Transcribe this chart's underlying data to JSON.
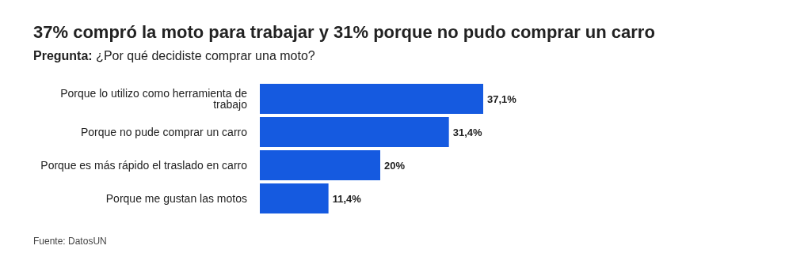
{
  "chart_data": {
    "type": "bar",
    "orientation": "horizontal",
    "tick_labels": false,
    "title": "37% compró la moto para trabajar y 31% porque no pudo comprar un carro",
    "subtitle": "Pregunta: ¿Por qué decidiste comprar una moto?",
    "categories": [
      "Porque lo utilizo como herramienta de trabajo",
      "Porque no pude comprar un carro",
      "Porque es más rápido el traslado en carro",
      "Porque me gustan las motos"
    ],
    "values": [
      37.1,
      31.4,
      20,
      11.4
    ],
    "value_labels": [
      "37,1%",
      "31,4%",
      "20%",
      "11,4%"
    ],
    "color": "#155ae0",
    "annotations": [
      "Fuente: DatosUN"
    ]
  }
}
